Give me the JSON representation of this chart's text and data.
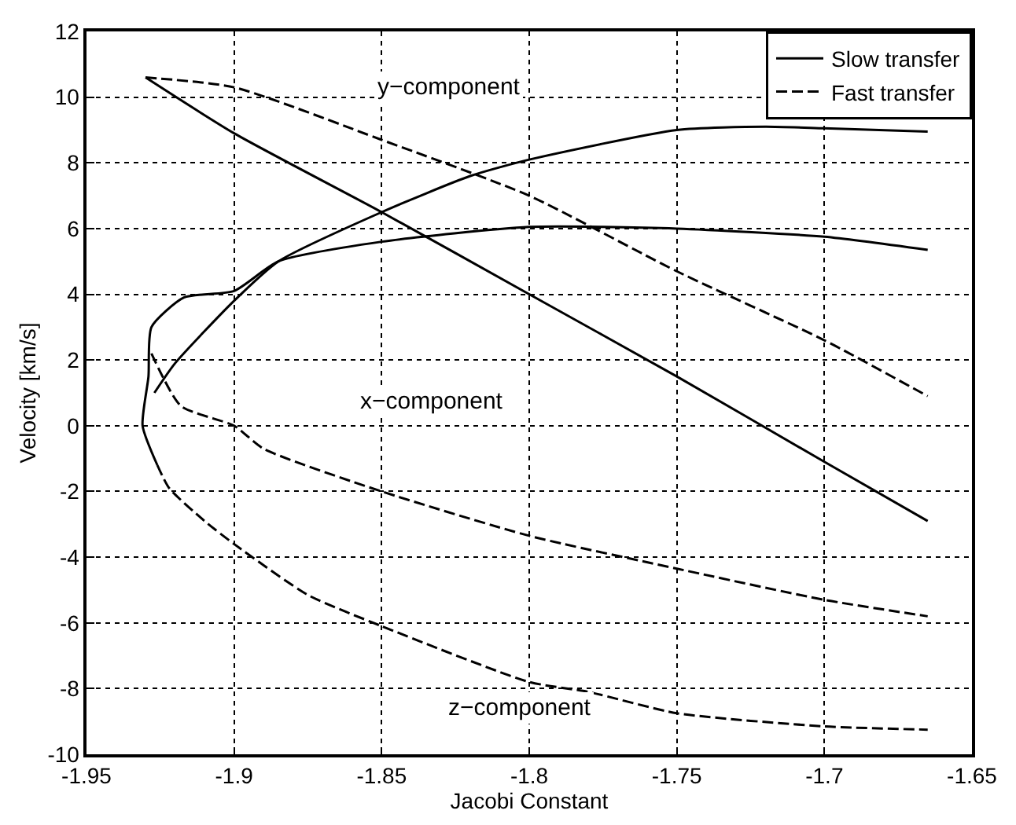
{
  "chart_data": {
    "type": "line",
    "xlabel": "Jacobi Constant",
    "ylabel": "Velocity [km/s]",
    "xlim": [
      -1.95,
      -1.65
    ],
    "xticks": [
      -1.95,
      -1.9,
      -1.85,
      -1.8,
      -1.75,
      -1.7,
      -1.65
    ],
    "ylim": [
      -10,
      12
    ],
    "yticks": [
      -10,
      -8,
      -6,
      -4,
      -2,
      0,
      2,
      4,
      6,
      8,
      10,
      12
    ],
    "grid": true,
    "legend": "top right",
    "series": [
      {
        "name": "Slow transfer",
        "color": "#000000",
        "line_style": "solid",
        "x": [
          -1.93,
          -1.9,
          -1.85,
          -1.8,
          -1.75,
          -1.7,
          -1.665
        ],
        "values": [
          10.6,
          8.9,
          6.5,
          4.0,
          1.5,
          -1.1,
          -2.9
        ]
      },
      {
        "name": "Fast transfer",
        "color": "#000000",
        "line_style": "dashed",
        "x": [
          -1.93,
          -1.9,
          -1.85,
          -1.8,
          -1.75,
          -1.7,
          -1.665
        ],
        "values": [
          10.6,
          10.3,
          8.7,
          7.0,
          4.7,
          2.6,
          0.9
        ]
      },
      {
        "color": "#000000",
        "line_style": "solid",
        "x": [
          -1.926,
          -1.931,
          -1.929,
          -1.928,
          -1.917,
          -1.9,
          -1.885,
          -1.85,
          -1.8,
          -1.75,
          -1.7,
          -1.665
        ],
        "values": [
          -1.2,
          0,
          1.5,
          3.0,
          3.9,
          4.1,
          5.0,
          5.6,
          6.05,
          6.0,
          5.75,
          5.35
        ]
      },
      {
        "color": "#000000",
        "line_style": "solid",
        "x": [
          -1.927,
          -1.92,
          -1.9,
          -1.885,
          -1.85,
          -1.82,
          -1.8,
          -1.75,
          -1.72,
          -1.7,
          -1.665
        ],
        "values": [
          1.0,
          1.9,
          3.8,
          5.0,
          6.5,
          7.6,
          8.1,
          9.0,
          9.1,
          9.05,
          8.95
        ]
      },
      {
        "color": "#000000",
        "line_style": "dashed",
        "x": [
          -1.928,
          -1.918,
          -1.9,
          -1.89,
          -1.85,
          -1.8,
          -1.75,
          -1.7,
          -1.665
        ],
        "values": [
          2.2,
          0.6,
          0,
          -0.7,
          -2.0,
          -3.35,
          -4.35,
          -5.3,
          -5.8
        ]
      },
      {
        "color": "#000000",
        "line_style": "dashed",
        "x": [
          -1.926,
          -1.922,
          -1.91,
          -1.9,
          -1.875,
          -1.85,
          -1.8,
          -1.78,
          -1.75,
          -1.7,
          -1.665
        ],
        "values": [
          -1.2,
          -1.9,
          -2.9,
          -3.6,
          -5.15,
          -6.1,
          -7.8,
          -8.1,
          -8.75,
          -9.15,
          -9.25
        ]
      }
    ],
    "annotations": [
      "y−component",
      "x−component",
      "z−component"
    ]
  }
}
